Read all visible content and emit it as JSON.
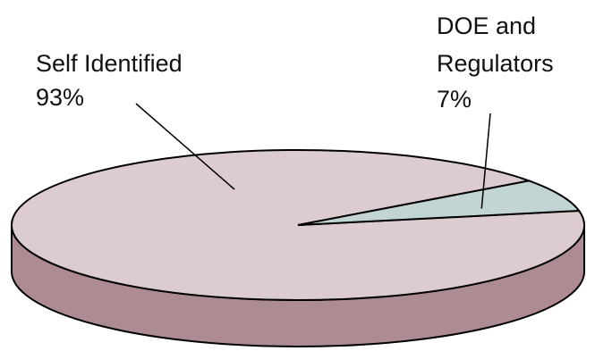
{
  "chart_data": {
    "type": "pie",
    "style": "3d-tilted",
    "slices": [
      {
        "label": "Self Identified",
        "value": 93,
        "value_label": "93%",
        "color": "#dccbcf",
        "side_color": "#ac8c92"
      },
      {
        "label_lines": [
          "DOE and",
          "Regulators"
        ],
        "value": 7,
        "value_label": "7%",
        "color": "#c2d4d4",
        "side_color": "#8fa3a3"
      }
    ],
    "legend": "none"
  }
}
